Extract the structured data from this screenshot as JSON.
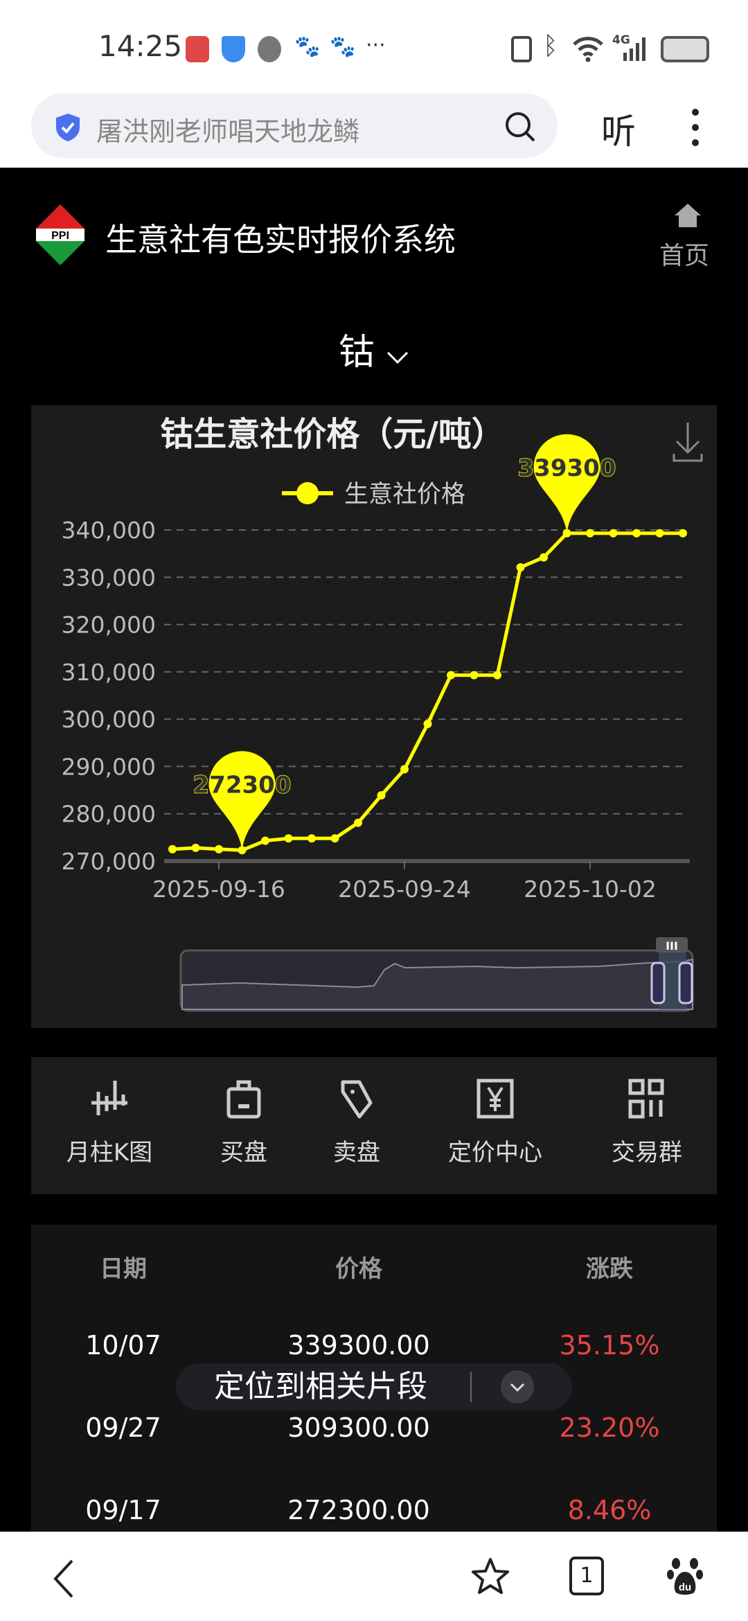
{
  "status_bar": {
    "time": "14:25",
    "network": "4G"
  },
  "browser": {
    "search_text": "屠洪刚老师唱天地龙鳞",
    "listen_label": "听",
    "tab_count": "1"
  },
  "header": {
    "title": "生意社有色实时报价系统",
    "home_label": "首页",
    "logo_text": "PPI"
  },
  "selector": {
    "metal": "钴"
  },
  "chart_data": {
    "type": "line",
    "title": "钴生意社价格（元/吨）",
    "series": [
      {
        "name": "生意社价格",
        "color": "#ffff00",
        "values": [
          272500,
          272800,
          272500,
          272300,
          274300,
          274800,
          274800,
          274800,
          278100,
          283900,
          289400,
          299000,
          309300,
          309300,
          309300,
          332100,
          334200,
          339300,
          339300,
          339300,
          339300,
          339300,
          339300
        ]
      }
    ],
    "categories": [
      "2025-09-14",
      "2025-09-15",
      "2025-09-16",
      "2025-09-17",
      "2025-09-18",
      "2025-09-19",
      "2025-09-20",
      "2025-09-21",
      "2025-09-22",
      "2025-09-23",
      "2025-09-24",
      "2025-09-25",
      "2025-09-26",
      "2025-09-27",
      "2025-09-28",
      "2025-09-29",
      "2025-09-30",
      "2025-10-01",
      "2025-10-02",
      "2025-10-03",
      "2025-10-04",
      "2025-10-05",
      "2025-10-06"
    ],
    "x_tick_labels": [
      "2025-09-16",
      "2025-09-24",
      "2025-10-02"
    ],
    "y_ticks": [
      "270,000",
      "280,000",
      "290,000",
      "300,000",
      "310,000",
      "320,000",
      "330,000",
      "340,000"
    ],
    "ylim": [
      270000,
      340000
    ],
    "grid": true,
    "legend_position": "top",
    "markers": [
      {
        "label": "272300",
        "value": 272300,
        "type": "min"
      },
      {
        "label": "339300",
        "value": 339300,
        "type": "max"
      }
    ]
  },
  "menu": [
    {
      "label": "月柱K图",
      "icon": "candlestick-icon"
    },
    {
      "label": "买盘",
      "icon": "shopping-bag-icon"
    },
    {
      "label": "卖盘",
      "icon": "tag-icon"
    },
    {
      "label": "定价中心",
      "icon": "yen-icon"
    },
    {
      "label": "交易群",
      "icon": "grid-icon"
    }
  ],
  "table": {
    "headers": [
      "日期",
      "价格",
      "涨跌"
    ],
    "rows": [
      [
        "10/07",
        "339300.00",
        "35.15%"
      ],
      [
        "09/27",
        "309300.00",
        "23.20%"
      ],
      [
        "09/17",
        "272300.00",
        "8.46%"
      ]
    ]
  },
  "toast": {
    "text": "定位到相关片段"
  }
}
